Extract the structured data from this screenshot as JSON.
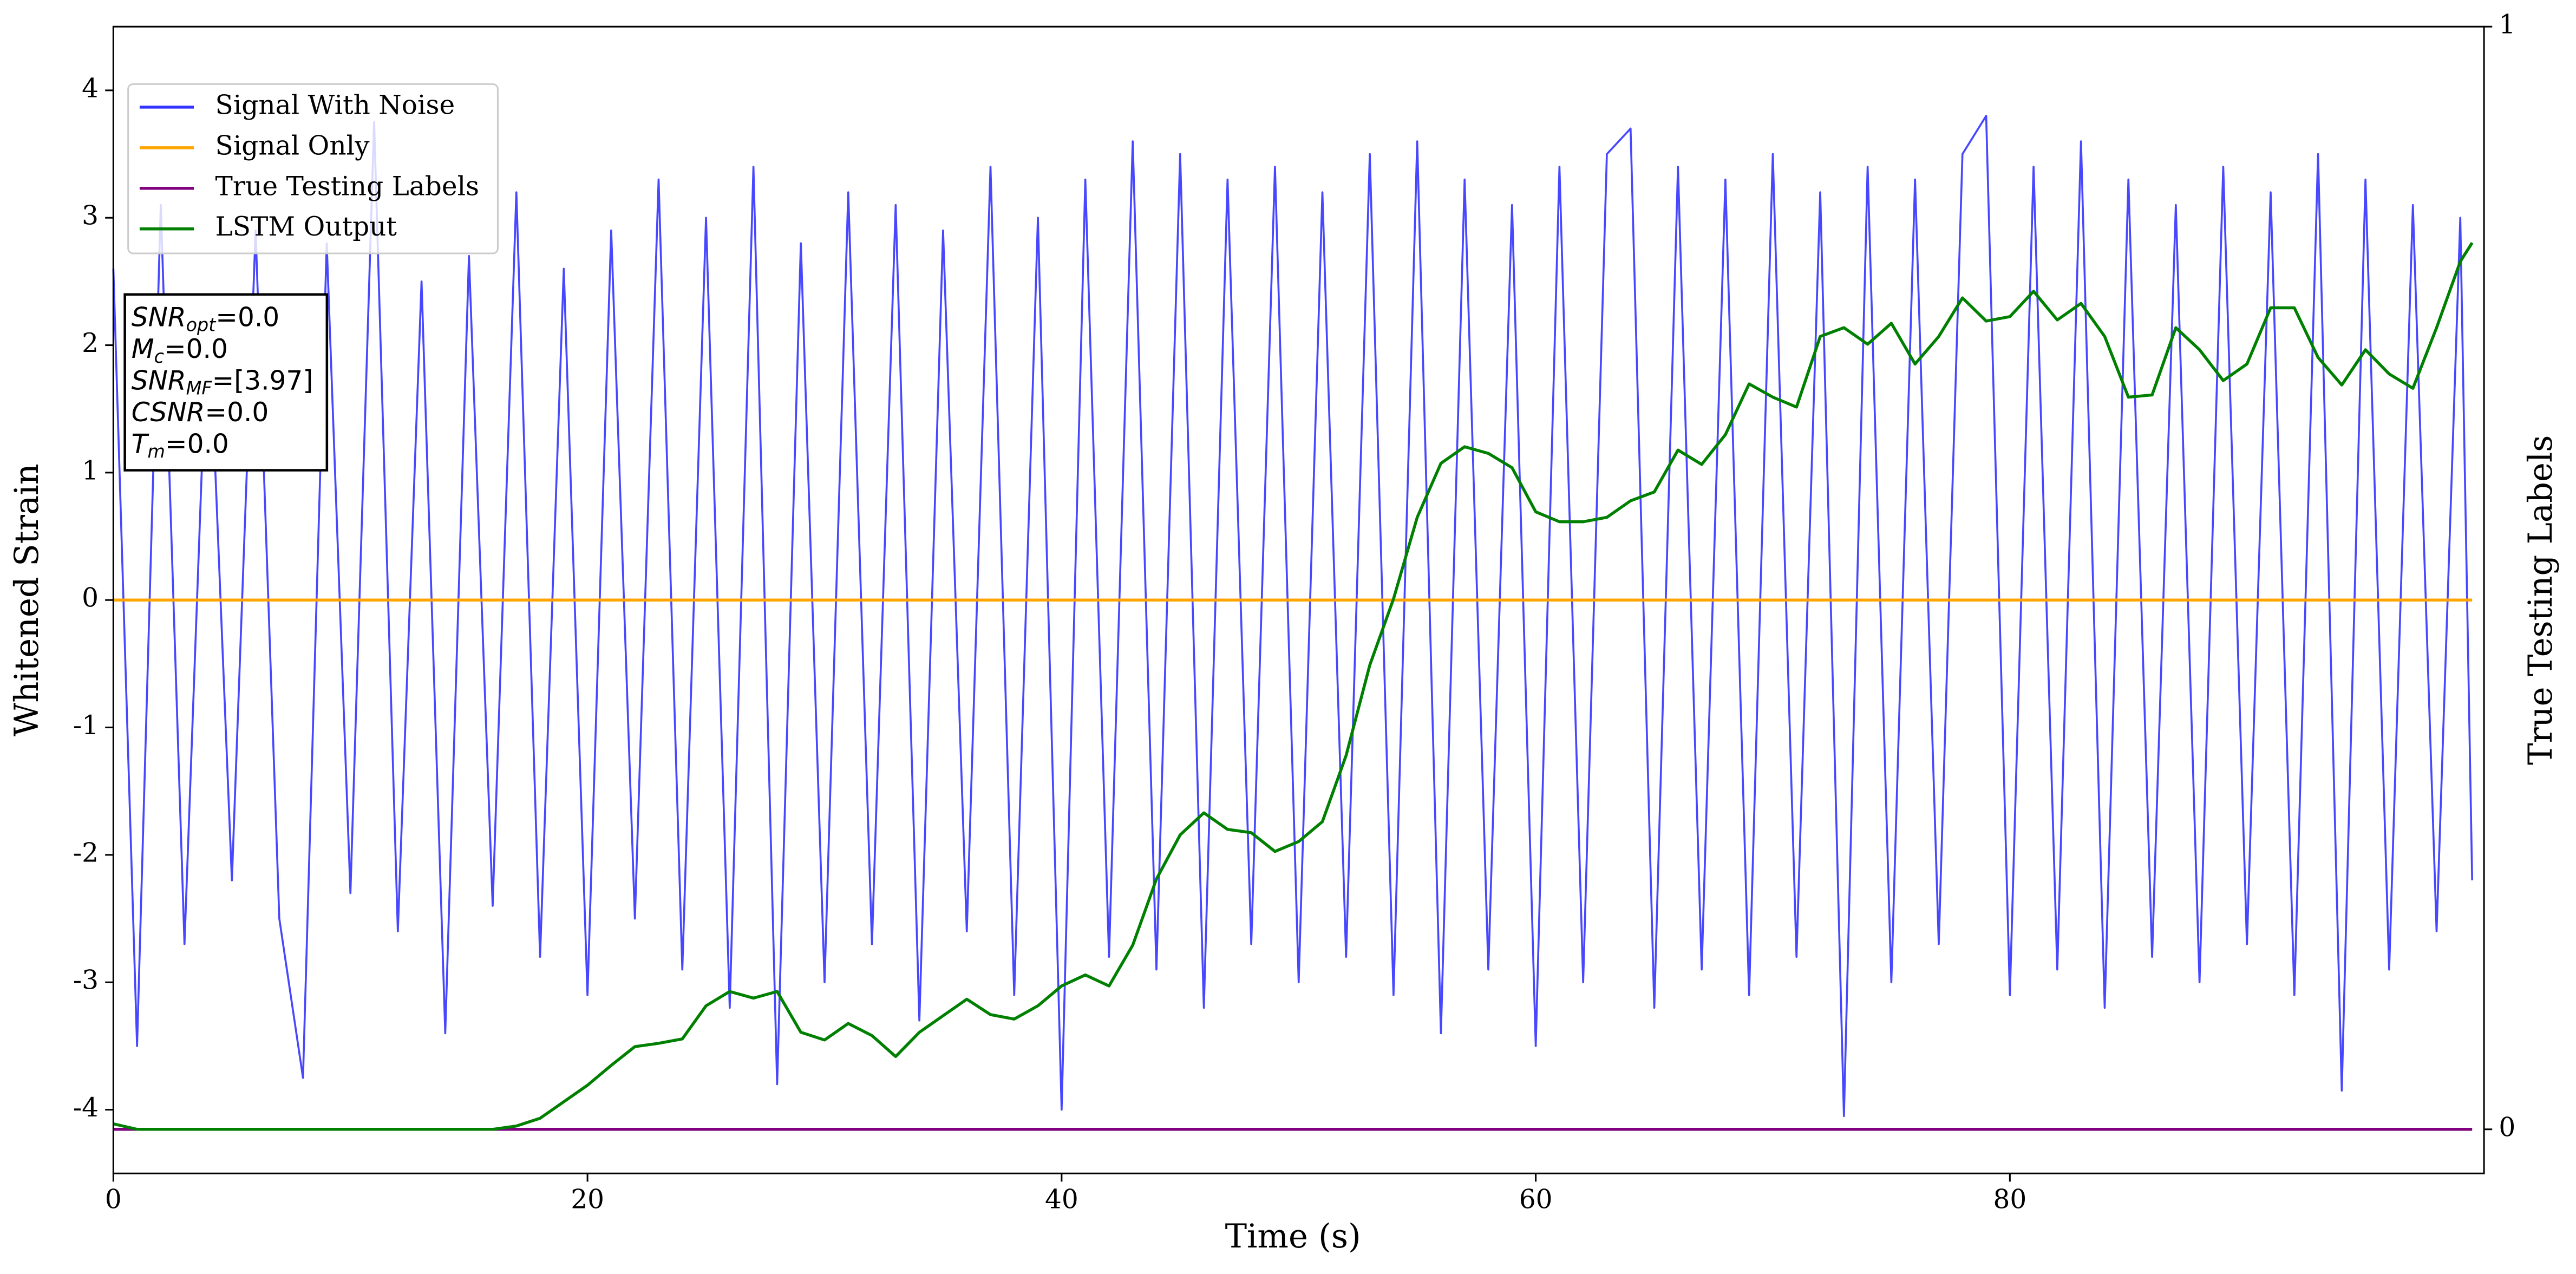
{
  "chart_data": {
    "type": "line",
    "xlabel": "Time (s)",
    "ylabel": "Whitened Strain",
    "y2label": "True Testing Labels",
    "x": [
      0,
      1,
      2,
      3,
      4,
      5,
      6,
      7,
      8,
      9,
      10,
      11,
      12,
      13,
      14,
      15,
      16,
      17,
      18,
      19,
      20,
      21,
      22,
      23,
      24,
      25,
      26,
      27,
      28,
      29,
      30,
      31,
      32,
      33,
      34,
      35,
      36,
      37,
      38,
      39,
      40,
      41,
      42,
      43,
      44,
      45,
      46,
      47,
      48,
      49,
      50,
      51,
      52,
      53,
      54,
      55,
      56,
      57,
      58,
      59,
      60,
      61,
      62,
      63,
      64,
      65,
      66,
      67,
      68,
      69,
      70,
      71,
      72,
      73,
      74,
      75,
      76,
      77,
      78,
      79,
      80,
      81,
      82,
      83,
      84,
      85,
      86,
      87,
      88,
      89,
      90,
      91,
      92,
      93,
      94,
      95,
      96,
      97,
      98,
      99,
      99.5
    ],
    "series": [
      {
        "name": "Signal With Noise",
        "color": "#3333ff",
        "values": [
          2.6,
          -3.5,
          3.1,
          -2.7,
          2.4,
          -2.2,
          2.9,
          -2.5,
          -3.75,
          2.8,
          -2.3,
          3.75,
          -2.6,
          2.5,
          -3.4,
          2.7,
          -2.4,
          3.2,
          -2.8,
          2.6,
          -3.1,
          2.9,
          -2.5,
          3.3,
          -2.9,
          3.0,
          -3.2,
          3.4,
          -3.8,
          2.8,
          -3.0,
          3.2,
          -2.7,
          3.1,
          -3.3,
          2.9,
          -2.6,
          3.4,
          -3.1,
          3.0,
          -4.0,
          3.3,
          -2.8,
          3.6,
          -2.9,
          3.5,
          -3.2,
          3.3,
          -2.7,
          3.4,
          -3.0,
          3.2,
          -2.8,
          3.5,
          -3.1,
          3.6,
          -3.4,
          3.3,
          -2.9,
          3.1,
          -3.5,
          3.4,
          -3.0,
          3.5,
          3.7,
          -3.2,
          3.4,
          -2.9,
          3.3,
          -3.1,
          3.5,
          -2.8,
          3.2,
          -4.05,
          3.4,
          -3.0,
          3.3,
          -2.7,
          3.5,
          3.8,
          -3.1,
          3.4,
          -2.9,
          3.6,
          -3.2,
          3.3,
          -2.8,
          3.1,
          -3.0,
          3.4,
          -2.7,
          3.2,
          -3.1,
          3.5,
          -3.85,
          3.3,
          -2.9,
          3.1,
          -2.6,
          3.0,
          -2.2
        ]
      },
      {
        "name": "Signal Only",
        "color": "#ffa500",
        "values": [
          0,
          0,
          0,
          0,
          0,
          0,
          0,
          0,
          0,
          0,
          0,
          0,
          0,
          0,
          0,
          0,
          0,
          0,
          0,
          0,
          0,
          0,
          0,
          0,
          0,
          0,
          0,
          0,
          0,
          0,
          0,
          0,
          0,
          0,
          0,
          0,
          0,
          0,
          0,
          0,
          0,
          0,
          0,
          0,
          0,
          0,
          0,
          0,
          0,
          0,
          0,
          0,
          0,
          0,
          0,
          0,
          0,
          0,
          0,
          0,
          0,
          0,
          0,
          0,
          0,
          0,
          0,
          0,
          0,
          0,
          0,
          0,
          0,
          0,
          0,
          0,
          0,
          0,
          0,
          0,
          0,
          0,
          0,
          0,
          0,
          0,
          0,
          0,
          0,
          0,
          0,
          0,
          0,
          0,
          0,
          0,
          0,
          0,
          0,
          0,
          0
        ]
      },
      {
        "name": "True Testing Labels",
        "color": "#800080",
        "axis": "y2",
        "values": [
          0,
          0,
          0,
          0,
          0,
          0,
          0,
          0,
          0,
          0,
          0,
          0,
          0,
          0,
          0,
          0,
          0,
          0,
          0,
          0,
          0,
          0,
          0,
          0,
          0,
          0,
          0,
          0,
          0,
          0,
          0,
          0,
          0,
          0,
          0,
          0,
          0,
          0,
          0,
          0,
          0,
          0,
          0,
          0,
          0,
          0,
          0,
          0,
          0,
          0,
          0,
          0,
          0,
          0,
          0,
          0,
          0,
          0,
          0,
          0,
          0,
          0,
          0,
          0,
          0,
          0,
          0,
          0,
          0,
          0,
          0,
          0,
          0,
          0,
          0,
          0,
          0,
          0,
          0,
          0,
          0,
          0,
          0,
          0,
          0,
          0,
          0,
          0,
          0,
          0,
          0,
          0,
          0,
          0,
          0,
          0,
          0,
          0,
          0,
          0,
          0
        ]
      },
      {
        "name": "LSTM Output",
        "color": "#008000",
        "axis": "y2",
        "values": [
          0.005,
          0,
          0,
          0,
          0,
          0,
          0,
          0,
          0,
          0,
          0,
          0,
          0,
          0,
          0,
          0,
          0,
          0.003,
          0.01,
          0.025,
          0.04,
          0.058,
          0.075,
          0.078,
          0.082,
          0.112,
          0.125,
          0.119,
          0.125,
          0.088,
          0.081,
          0.096,
          0.085,
          0.066,
          0.088,
          0.103,
          0.118,
          0.104,
          0.1,
          0.112,
          0.13,
          0.14,
          0.13,
          0.167,
          0.227,
          0.267,
          0.287,
          0.272,
          0.269,
          0.252,
          0.261,
          0.279,
          0.339,
          0.421,
          0.481,
          0.555,
          0.604,
          0.619,
          0.613,
          0.6,
          0.56,
          0.551,
          0.551,
          0.555,
          0.57,
          0.578,
          0.616,
          0.603,
          0.63,
          0.676,
          0.664,
          0.655,
          0.719,
          0.727,
          0.712,
          0.731,
          0.694,
          0.719,
          0.754,
          0.733,
          0.737,
          0.76,
          0.734,
          0.749,
          0.719,
          0.664,
          0.666,
          0.727,
          0.707,
          0.679,
          0.694,
          0.745,
          0.745,
          0.7,
          0.675,
          0.707,
          0.685,
          0.672,
          0.727,
          0.787,
          0.804
        ]
      }
    ],
    "xlim": [
      0,
      100
    ],
    "xticks": [
      0,
      20,
      40,
      60,
      80
    ],
    "ylim": [
      -4.5,
      4.5
    ],
    "yticks": [
      -4,
      -3,
      -2,
      -1,
      0,
      1,
      2,
      3,
      4
    ],
    "y2lim": [
      -0.04,
      1.0
    ],
    "y2ticks": [
      0,
      1
    ],
    "legend": "upper left",
    "annotation": [
      {
        "text": "SNR",
        "sub": "opt",
        "value": "=0.0"
      },
      {
        "text": "M",
        "sub": "c",
        "value": "=0.0"
      },
      {
        "text": "SNR",
        "sub": "MF",
        "value": "=[3.97]"
      },
      {
        "text": "CSNR",
        "value": "=0.0"
      },
      {
        "text": "T",
        "sub": "m",
        "value": "=0.0"
      }
    ]
  }
}
